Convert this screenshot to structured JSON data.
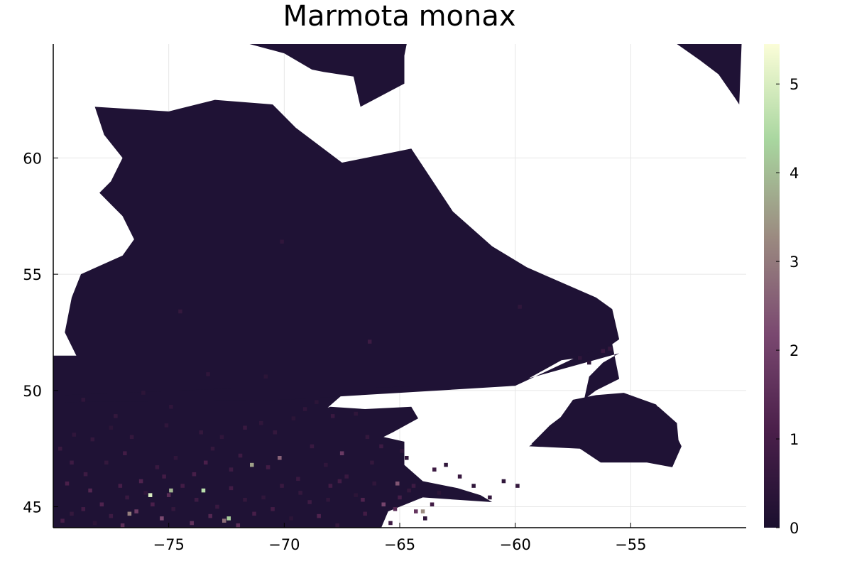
{
  "chart_data": {
    "type": "heatmap",
    "title": "Marmota monax",
    "xlabel": "",
    "ylabel": "",
    "xlim": [
      -80,
      -50
    ],
    "ylim": [
      44.1,
      64.9
    ],
    "x_ticks": [
      -75,
      -70,
      -65,
      -60,
      -55
    ],
    "x_tick_labels": [
      "−75",
      "−70",
      "−65",
      "−60",
      "−55"
    ],
    "y_ticks": [
      45,
      50,
      55,
      60
    ],
    "y_tick_labels": [
      "45",
      "50",
      "55",
      "60"
    ],
    "grid": true,
    "colorbar": {
      "range": [
        0,
        5.45
      ],
      "ticks": [
        0,
        1,
        2,
        3,
        4,
        5
      ],
      "tick_labels": [
        "0",
        "1",
        "2",
        "3",
        "4",
        "5"
      ],
      "colors": [
        "#1a0f2e",
        "#4a1f4a",
        "#7a4870",
        "#9b8a80",
        "#a8d69f",
        "#fbfdd8"
      ]
    },
    "background_value": 0,
    "background_color": "#1f1235",
    "nodata_color": "#ffffff",
    "land_regions_lonlat": [
      [
        [
          -80,
          51.5
        ],
        [
          -79,
          51.5
        ],
        [
          -79.5,
          52.5
        ],
        [
          -79.2,
          54
        ],
        [
          -78.8,
          55
        ],
        [
          -77,
          55.8
        ],
        [
          -76.5,
          56.5
        ],
        [
          -77,
          57.5
        ],
        [
          -77.5,
          58
        ],
        [
          -78,
          58.5
        ],
        [
          -77.5,
          59
        ],
        [
          -77,
          60
        ],
        [
          -77.8,
          61
        ],
        [
          -78.2,
          62.2
        ],
        [
          -75,
          62
        ],
        [
          -73,
          62.5
        ],
        [
          -70.5,
          62.3
        ],
        [
          -69.5,
          61.3
        ],
        [
          -67.5,
          59.8
        ],
        [
          -64.5,
          60.4
        ],
        [
          -62.7,
          57.7
        ],
        [
          -61,
          56.2
        ],
        [
          -59.5,
          55.3
        ],
        [
          -56.5,
          54
        ],
        [
          -55.8,
          53.5
        ],
        [
          -55.5,
          52.2
        ],
        [
          -56.5,
          51.5
        ],
        [
          -58,
          51.3
        ],
        [
          -60,
          50.2
        ],
        [
          -65,
          50.1
        ],
        [
          -67.5,
          49.8
        ],
        [
          -69,
          48.5
        ],
        [
          -70.2,
          47.6
        ],
        [
          -71,
          47.5
        ],
        [
          -73,
          46.8
        ],
        [
          -71.2,
          48.3
        ],
        [
          -68,
          49.3
        ],
        [
          -66.5,
          49.2
        ],
        [
          -64.5,
          49.3
        ],
        [
          -64.2,
          48.8
        ],
        [
          -65.3,
          48.2
        ],
        [
          -65.7,
          48
        ],
        [
          -64.8,
          47.8
        ],
        [
          -64.8,
          46.8
        ],
        [
          -64,
          46.1
        ],
        [
          -62.5,
          45.8
        ],
        [
          -61.5,
          45.5
        ],
        [
          -61,
          45.2
        ],
        [
          -64,
          45.4
        ],
        [
          -65.5,
          44.8
        ],
        [
          -65.8,
          44.1
        ],
        [
          -80,
          44.1
        ]
      ],
      [
        [
          -79.5,
          49.5
        ],
        [
          -70,
          49.6
        ],
        [
          -65,
          49.9
        ],
        [
          -60,
          50.2
        ],
        [
          -57.2,
          51.5
        ],
        [
          -55.8,
          52
        ],
        [
          -55.5,
          50.5
        ],
        [
          -56.5,
          50
        ],
        [
          -58.5,
          48.5
        ],
        [
          -59.3,
          47.7
        ],
        [
          -58.6,
          47.6
        ],
        [
          -57,
          47.6
        ],
        [
          -56,
          47.4
        ],
        [
          -53.4,
          46.8
        ],
        [
          -52.9,
          47.5
        ],
        [
          -53,
          48.6
        ],
        [
          -53.8,
          49.3
        ],
        [
          -55.2,
          49.8
        ],
        [
          -57,
          49.7
        ],
        [
          -56.8,
          50.6
        ],
        [
          -56.2,
          51.2
        ],
        [
          -55.5,
          51.6
        ],
        [
          -59.5,
          50.5
        ],
        [
          -60,
          50.2
        ],
        [
          -64,
          50.2
        ],
        [
          -66.5,
          50.1
        ],
        [
          -72,
          50.1
        ],
        [
          -79.5,
          49.8
        ]
      ],
      [
        [
          -71.5,
          64.9
        ],
        [
          -70,
          64.5
        ],
        [
          -68.8,
          63.8
        ],
        [
          -68.3,
          63.7
        ],
        [
          -67,
          63.5
        ],
        [
          -66.7,
          62.2
        ],
        [
          -64.8,
          63.2
        ],
        [
          -64.8,
          64.4
        ],
        [
          -64.7,
          64.9
        ]
      ],
      [
        [
          -53,
          64.9
        ],
        [
          -52,
          64.2
        ],
        [
          -51.2,
          63.6
        ],
        [
          -50.5,
          62.6
        ],
        [
          -50.3,
          62.3
        ],
        [
          -50.2,
          64.9
        ]
      ],
      [
        [
          -57.2,
          47.5
        ],
        [
          -56.3,
          46.9
        ],
        [
          -55.7,
          46.9
        ],
        [
          -54.3,
          46.9
        ],
        [
          -53.2,
          46.7
        ],
        [
          -52.8,
          47.6
        ],
        [
          -53.2,
          48.4
        ],
        [
          -53.9,
          49.4
        ],
        [
          -55.3,
          49.9
        ],
        [
          -56.5,
          49.8
        ],
        [
          -57.5,
          49.6
        ],
        [
          -58.5,
          48.2
        ],
        [
          -59.4,
          47.6
        ]
      ]
    ],
    "cells": [
      [
        -79.6,
        44.4,
        1.0
      ],
      [
        -79.2,
        44.7,
        0.6
      ],
      [
        -78.7,
        44.9,
        0.9
      ],
      [
        -78.2,
        44.3,
        0.4
      ],
      [
        -77.9,
        45.1,
        1.2
      ],
      [
        -77.5,
        44.6,
        0.8
      ],
      [
        -77.0,
        44.2,
        1.5
      ],
      [
        -76.8,
        45.4,
        0.7
      ],
      [
        -76.4,
        44.8,
        1.9
      ],
      [
        -76.0,
        45.6,
        0.5
      ],
      [
        -75.7,
        45.1,
        1.1
      ],
      [
        -75.3,
        44.5,
        2.2
      ],
      [
        -75.0,
        45.5,
        1.4
      ],
      [
        -74.8,
        44.9,
        0.6
      ],
      [
        -74.4,
        45.9,
        0.9
      ],
      [
        -74.0,
        44.3,
        1.6
      ],
      [
        -73.8,
        45.3,
        0.8
      ],
      [
        -73.5,
        45.7,
        4.6
      ],
      [
        -73.2,
        44.6,
        1.3
      ],
      [
        -72.9,
        45.0,
        0.7
      ],
      [
        -72.6,
        44.4,
        2.8
      ],
      [
        -72.3,
        45.8,
        0.9
      ],
      [
        -72.0,
        44.2,
        1.5
      ],
      [
        -71.7,
        45.3,
        0.6
      ],
      [
        -71.3,
        44.7,
        1.0
      ],
      [
        -70.9,
        45.4,
        0.5
      ],
      [
        -70.5,
        44.9,
        0.9
      ],
      [
        -70.1,
        45.9,
        0.7
      ],
      [
        -69.7,
        44.5,
        0.4
      ],
      [
        -69.3,
        45.6,
        0.6
      ],
      [
        -68.9,
        45.2,
        0.8
      ],
      [
        -68.5,
        44.6,
        1.2
      ],
      [
        -68.1,
        45.3,
        0.5
      ],
      [
        -67.7,
        44.2,
        0.6
      ],
      [
        -67.3,
        46.3,
        0.7
      ],
      [
        -66.9,
        45.5,
        0.4
      ],
      [
        -66.5,
        44.7,
        0.9
      ],
      [
        -66.1,
        46.0,
        0.5
      ],
      [
        -65.7,
        45.1,
        2.1
      ],
      [
        -65.4,
        44.3,
        0.8
      ],
      [
        -65.0,
        45.4,
        1.0
      ],
      [
        -64.6,
        45.7,
        0.6
      ],
      [
        -64.3,
        44.8,
        1.7
      ],
      [
        -63.9,
        44.5,
        0.5
      ],
      [
        -63.6,
        45.1,
        0.9
      ],
      [
        -63.3,
        45.6,
        0.4
      ],
      [
        -75.8,
        45.5,
        5.0
      ],
      [
        -74.9,
        45.7,
        3.9
      ],
      [
        -72.4,
        44.5,
        4.2
      ],
      [
        -76.7,
        44.7,
        3.1
      ],
      [
        -71.4,
        46.8,
        3.6
      ],
      [
        -70.2,
        47.1,
        2.6
      ],
      [
        -67.5,
        47.3,
        1.8
      ],
      [
        -65.1,
        46.0,
        2.4
      ],
      [
        -64.0,
        44.8,
        3.3
      ],
      [
        -79.4,
        46.0,
        1.1
      ],
      [
        -78.6,
        46.4,
        0.8
      ],
      [
        -77.7,
        46.9,
        0.6
      ],
      [
        -76.9,
        47.3,
        0.9
      ],
      [
        -76.2,
        46.1,
        1.2
      ],
      [
        -75.5,
        46.7,
        0.7
      ],
      [
        -74.7,
        47.1,
        0.5
      ],
      [
        -73.9,
        46.4,
        1.0
      ],
      [
        -73.1,
        47.5,
        0.6
      ],
      [
        -72.3,
        46.6,
        0.8
      ],
      [
        -71.7,
        48.4,
        0.7
      ],
      [
        -71.0,
        48.6,
        0.5
      ],
      [
        -70.4,
        48.2,
        0.6
      ],
      [
        -69.6,
        48.8,
        0.4
      ],
      [
        -68.8,
        47.6,
        0.7
      ],
      [
        -68.2,
        46.8,
        0.5
      ],
      [
        -66.4,
        48.0,
        0.6
      ],
      [
        -65.8,
        47.6,
        0.8
      ],
      [
        -64.9,
        47.4,
        0.5
      ],
      [
        -79.7,
        47.5,
        0.7
      ],
      [
        -79.1,
        48.1,
        0.5
      ],
      [
        -78.3,
        47.9,
        0.6
      ],
      [
        -77.5,
        48.4,
        0.4
      ],
      [
        -76.6,
        48.0,
        0.6
      ],
      [
        -75.1,
        48.5,
        0.5
      ],
      [
        -73.6,
        48.2,
        0.6
      ],
      [
        -72.7,
        48.0,
        0.5
      ],
      [
        -69.1,
        49.2,
        0.5
      ],
      [
        -68.6,
        49.5,
        0.4
      ],
      [
        -67.9,
        48.9,
        0.7
      ],
      [
        -66.9,
        49.0,
        0.5
      ],
      [
        -64.7,
        47.1,
        0.6
      ],
      [
        -63.5,
        46.6,
        0.8
      ],
      [
        -66.3,
        52.1,
        0.8
      ],
      [
        -70.1,
        56.4,
        0.5
      ],
      [
        -74.5,
        53.4,
        0.6
      ],
      [
        -59.8,
        53.6,
        0.5
      ],
      [
        -56.2,
        51.7,
        0.7
      ],
      [
        -55.9,
        51.8,
        0.6
      ],
      [
        -57.2,
        51.4,
        0.5
      ],
      [
        -56.8,
        51.2,
        0.4
      ],
      [
        -78.7,
        49.6,
        0.5
      ],
      [
        -76.1,
        49.9,
        0.4
      ],
      [
        -73.3,
        50.7,
        0.5
      ],
      [
        -77.3,
        48.9,
        0.6
      ],
      [
        -74.9,
        49.3,
        0.5
      ],
      [
        -70.8,
        50.6,
        0.4
      ],
      [
        -67.6,
        46.1,
        0.9
      ],
      [
        -66.2,
        46.9,
        0.6
      ],
      [
        -63.0,
        46.8,
        0.5
      ],
      [
        -62.4,
        46.3,
        0.7
      ],
      [
        -61.8,
        45.9,
        0.5
      ],
      [
        -61.1,
        45.4,
        0.6
      ],
      [
        -60.5,
        46.1,
        0.5
      ],
      [
        -59.9,
        45.9,
        0.6
      ],
      [
        -79.2,
        46.9,
        0.8
      ],
      [
        -78.4,
        45.7,
        1.3
      ],
      [
        -77.1,
        45.9,
        1.0
      ],
      [
        -75.2,
        46.3,
        0.9
      ],
      [
        -73.4,
        46.9,
        1.1
      ],
      [
        -71.9,
        47.2,
        0.8
      ],
      [
        -70.7,
        46.7,
        0.9
      ],
      [
        -69.4,
        46.2,
        0.7
      ],
      [
        -68.0,
        45.9,
        0.9
      ],
      [
        -66.6,
        45.3,
        1.2
      ],
      [
        -65.2,
        44.9,
        1.4
      ],
      [
        -64.4,
        45.9,
        0.8
      ]
    ]
  }
}
